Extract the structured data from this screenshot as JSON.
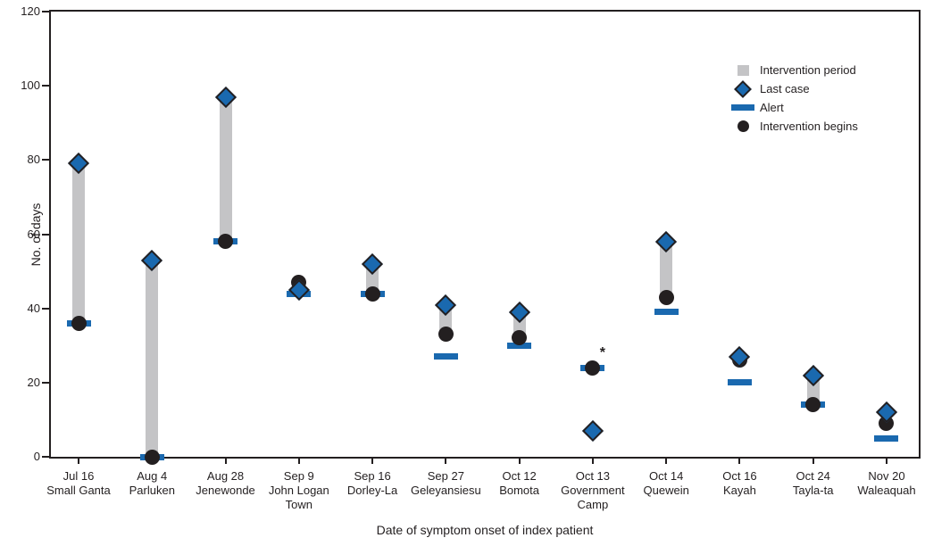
{
  "chart_data": {
    "type": "scatter",
    "title": "",
    "xlabel": "Date of symptom onset of index patient",
    "ylabel": "No. of days",
    "ylim": [
      0,
      120
    ],
    "yticks": [
      0,
      20,
      40,
      60,
      80,
      100,
      120
    ],
    "grid": false,
    "legend_position": "top-right-inside",
    "legend": [
      {
        "key": "intervention-period",
        "label": "Intervention period",
        "marker": "gray-bar"
      },
      {
        "key": "last-case",
        "label": "Last case",
        "marker": "blue-diamond"
      },
      {
        "key": "alert",
        "label": "Alert",
        "marker": "blue-dash"
      },
      {
        "key": "intervention-begins",
        "label": "Intervention begins",
        "marker": "black-circle"
      }
    ],
    "categories": [
      {
        "date": "Jul 16",
        "location": "Small Ganta",
        "alert": 36,
        "intervention_begins": 36,
        "last_case": 79,
        "period": [
          36,
          79
        ],
        "note": ""
      },
      {
        "date": "Aug 4",
        "location": "Parluken",
        "alert": 0,
        "intervention_begins": 0,
        "last_case": 53,
        "period": [
          0,
          53
        ],
        "note": ""
      },
      {
        "date": "Aug 28",
        "location": "Jenewonde",
        "alert": 58,
        "intervention_begins": 58,
        "last_case": 97,
        "period": [
          58,
          97
        ],
        "note": ""
      },
      {
        "date": "Sep 9",
        "location": "John Logan Town",
        "alert": 44,
        "intervention_begins": 47,
        "last_case": 45,
        "period": null,
        "note": ""
      },
      {
        "date": "Sep 16",
        "location": "Dorley-La",
        "alert": 44,
        "intervention_begins": 44,
        "last_case": 52,
        "period": [
          44,
          52
        ],
        "note": ""
      },
      {
        "date": "Sep 27",
        "location": "Geleyansiesu",
        "alert": 27,
        "intervention_begins": 33,
        "last_case": 41,
        "period": [
          33,
          41
        ],
        "note": ""
      },
      {
        "date": "Oct 12",
        "location": "Bomota",
        "alert": 30,
        "intervention_begins": 32,
        "last_case": 39,
        "period": [
          32,
          39
        ],
        "note": ""
      },
      {
        "date": "Oct 13",
        "location": "Government Camp",
        "alert": 24,
        "intervention_begins": 24,
        "last_case": 7,
        "period": null,
        "note": "*"
      },
      {
        "date": "Oct 14",
        "location": "Quewein",
        "alert": 39,
        "intervention_begins": 43,
        "last_case": 58,
        "period": [
          43,
          58
        ],
        "note": ""
      },
      {
        "date": "Oct 16",
        "location": "Kayah",
        "alert": 20,
        "intervention_begins": 26,
        "last_case": 27,
        "period": null,
        "note": ""
      },
      {
        "date": "Oct 24",
        "location": "Tayla-ta",
        "alert": 14,
        "intervention_begins": 14,
        "last_case": 22,
        "period": [
          14,
          22
        ],
        "note": ""
      },
      {
        "date": "Nov 20",
        "location": "Waleaquah",
        "alert": 5,
        "intervention_begins": 9,
        "last_case": 12,
        "period": null,
        "note": ""
      }
    ],
    "colors": {
      "blue": "#1a69af",
      "gray": "#c4c4c6",
      "black": "#231f20"
    }
  }
}
